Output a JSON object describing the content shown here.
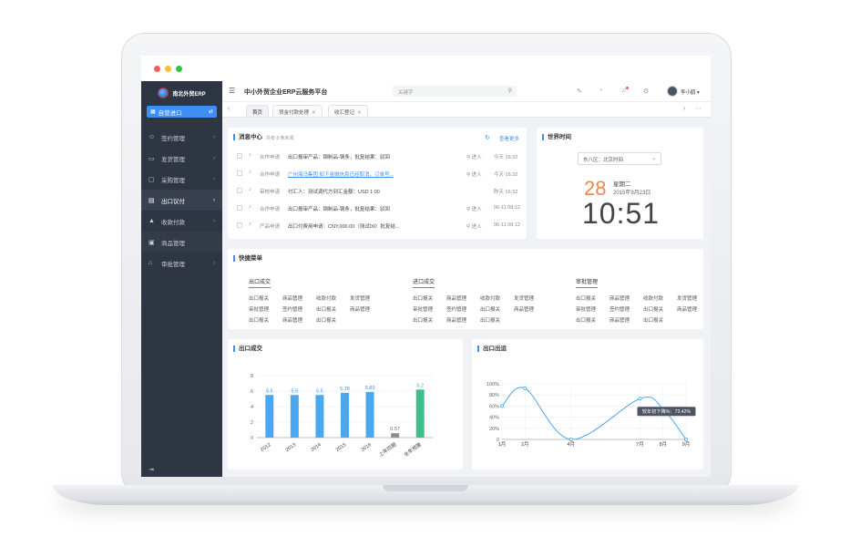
{
  "app": {
    "logo_text": "南北外贸ERP",
    "title": "中小外贸企业ERP云服务平台",
    "self_export_button": "自营进口",
    "user_name": "李小鹤"
  },
  "search": {
    "placeholder": "关键字"
  },
  "sidebar": {
    "items": [
      {
        "label": "签约管理",
        "icon": "person-icon"
      },
      {
        "label": "发货管理",
        "icon": "truck-icon"
      },
      {
        "label": "采购管理",
        "icon": "monitor-icon"
      },
      {
        "label": "出口议付",
        "icon": "document-icon"
      },
      {
        "label": "收款付款",
        "icon": "lock-icon"
      },
      {
        "label": "商品管理",
        "icon": "box-icon"
      },
      {
        "label": "审批管理",
        "icon": "home-icon"
      }
    ]
  },
  "tabs": [
    {
      "label": "首页"
    },
    {
      "label": "贸金付款处理"
    },
    {
      "label": "收汇登记"
    }
  ],
  "messages": {
    "title": "消息中心",
    "count_text": "共有 8 条未阅",
    "view_more": "查看更多",
    "rows": [
      {
        "type": "合作申请",
        "content": "出口报审产品：钢制品-钢条，批复结果：驳回",
        "enter": "进入",
        "time": "今天 16:32"
      },
      {
        "type": "合作申请",
        "content": "广州海马集团 如下金融信息已经取消，订单号...",
        "enter": "进入",
        "time": "今天 16:32"
      },
      {
        "type": "审核申请",
        "content": "付汇人：测试调代方到汇金额：USD 1.00",
        "enter": "",
        "time": "昨天 16:32"
      },
      {
        "type": "合作申请",
        "content": "出口报审产品：钢制品-钢条，批复结果：驳回",
        "enter": "进入",
        "time": "06-11 08:12"
      },
      {
        "type": "产品申请",
        "content": "出口付费用申请：CNY,000.00（测试09）批复结...",
        "enter": "进入",
        "time": "06-11 08:12"
      }
    ]
  },
  "world_time": {
    "title": "世界时间",
    "timezone": "东八区：北京时间",
    "day": "28",
    "weekday": "星期二",
    "date": "2015年9月23日",
    "clock": "10:51"
  },
  "quick_menu": {
    "title": "快捷菜单",
    "groups": [
      {
        "title": "出口成交",
        "links": [
          "出口报关",
          "商品管理",
          "收款付款",
          "发货管理",
          "审批管理",
          "签约管理",
          "出口报关",
          "商品管理",
          "出口报关",
          "商品管理",
          "出口报关"
        ]
      },
      {
        "title": "进口成交",
        "links": [
          "出口报关",
          "商品管理",
          "收款付款",
          "发货管理",
          "审批管理",
          "签约管理",
          "出口报关",
          "商品管理",
          "出口报关",
          "商品管理",
          "出口报关"
        ]
      },
      {
        "title": "审批管理",
        "links": [
          "出口报关",
          "商品管理",
          "收款付款",
          "发货管理",
          "审批管理",
          "签约管理",
          "出口报关",
          "商品管理",
          "出口报关",
          "商品管理",
          "出口报关"
        ]
      }
    ]
  },
  "colors": {
    "accent": "#3e8ef7",
    "sidebar": "#2e3543",
    "bar_blue": "#4aa8f0",
    "bar_gray": "#8a8f97",
    "bar_green": "#3fc088",
    "orange": "#f0874a"
  },
  "chart_data": [
    {
      "type": "bar",
      "title": "出口成交",
      "categories": [
        "2012",
        "2013",
        "2014",
        "2015",
        "2016",
        "上年同期",
        "全年预算"
      ],
      "values": [
        5.5,
        5.5,
        5.5,
        5.78,
        5.89,
        0.57,
        6.2
      ],
      "value_labels": [
        "5.5",
        "5.5",
        "5.5",
        "5.78",
        "5.89",
        "0.57",
        "6.2"
      ],
      "yticks": [
        "0",
        "2",
        "4",
        "6",
        "8"
      ],
      "ylim": [
        0,
        8
      ],
      "grid": true
    },
    {
      "type": "line",
      "title": "出口出运",
      "categories": [
        "1月",
        "2月",
        "4月",
        "7月",
        "8月",
        "9月"
      ],
      "x": [
        1,
        2,
        4,
        7,
        8,
        9
      ],
      "values": [
        60,
        92,
        0,
        73.42,
        55,
        0
      ],
      "yticks": [
        "0",
        "20%",
        "40%",
        "60%",
        "80%",
        "100%"
      ],
      "ylim": [
        0,
        100
      ],
      "tooltip": "较年初下降%：73.42%",
      "grid": true
    }
  ]
}
